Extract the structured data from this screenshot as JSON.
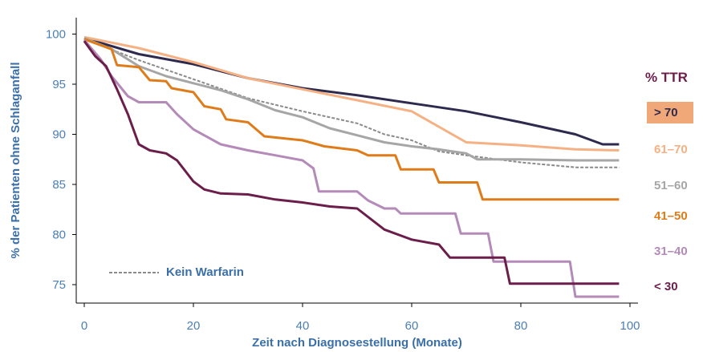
{
  "chart_data": {
    "type": "line",
    "xlabel": "Zeit nach Diagnosestellung (Monate)",
    "ylabel": "% der Patienten ohne Schlaganfall",
    "xlim": [
      0,
      100
    ],
    "ylim": [
      73,
      101
    ],
    "x_ticks": [
      0,
      20,
      40,
      60,
      80,
      100
    ],
    "y_ticks": [
      75,
      80,
      85,
      90,
      95,
      100
    ],
    "legend_title": "% TTR",
    "legend_position": "right",
    "annotation": "Kein Warfarin",
    "series": [
      {
        "name": "> 70",
        "color": "#2d2a4e",
        "highlight": "#f0a878",
        "points": [
          [
            0,
            99.6
          ],
          [
            10,
            98
          ],
          [
            20,
            97
          ],
          [
            30,
            95.6
          ],
          [
            40,
            94.6
          ],
          [
            50,
            93.9
          ],
          [
            60,
            93.1
          ],
          [
            70,
            92.3
          ],
          [
            80,
            91.2
          ],
          [
            90,
            90
          ],
          [
            95,
            89
          ],
          [
            98,
            89
          ]
        ]
      },
      {
        "name": "61–70",
        "color": "#f5b183",
        "points": [
          [
            0,
            99.7
          ],
          [
            10,
            98.6
          ],
          [
            20,
            97.2
          ],
          [
            30,
            95.6
          ],
          [
            40,
            94.5
          ],
          [
            50,
            93.4
          ],
          [
            60,
            92.3
          ],
          [
            70,
            89.2
          ],
          [
            80,
            88.9
          ],
          [
            90,
            88.5
          ],
          [
            98,
            88.4
          ]
        ]
      },
      {
        "name": "51–60",
        "color": "#a6a6a6",
        "points": [
          [
            0,
            99.6
          ],
          [
            5,
            98.5
          ],
          [
            10,
            96.8
          ],
          [
            15,
            95.8
          ],
          [
            20,
            95.1
          ],
          [
            25,
            94.4
          ],
          [
            30,
            93.5
          ],
          [
            35,
            92.4
          ],
          [
            40,
            91.7
          ],
          [
            45,
            90.6
          ],
          [
            50,
            89.9
          ],
          [
            55,
            89.2
          ],
          [
            60,
            88.8
          ],
          [
            65,
            88.5
          ],
          [
            70,
            88.1
          ],
          [
            72,
            87.5
          ],
          [
            80,
            87.5
          ],
          [
            90,
            87.4
          ],
          [
            98,
            87.4
          ]
        ]
      },
      {
        "name": "41–50",
        "color": "#e07b1a",
        "points": [
          [
            0,
            99.5
          ],
          [
            5,
            98.5
          ],
          [
            6,
            96.9
          ],
          [
            10,
            96.7
          ],
          [
            12,
            95.4
          ],
          [
            15,
            95.3
          ],
          [
            16,
            94.6
          ],
          [
            20,
            94.2
          ],
          [
            22,
            92.8
          ],
          [
            25,
            92.5
          ],
          [
            26,
            91.5
          ],
          [
            30,
            91.2
          ],
          [
            33,
            89.8
          ],
          [
            40,
            89.4
          ],
          [
            44,
            88.8
          ],
          [
            50,
            88.4
          ],
          [
            52,
            87.9
          ],
          [
            57,
            87.9
          ],
          [
            58,
            86.5
          ],
          [
            64,
            86.5
          ],
          [
            65,
            85.2
          ],
          [
            72,
            85.2
          ],
          [
            73,
            83.5
          ],
          [
            98,
            83.5
          ]
        ]
      },
      {
        "name": "31–40",
        "color": "#b48ab8",
        "points": [
          [
            0,
            99.4
          ],
          [
            3,
            97.5
          ],
          [
            5,
            95.8
          ],
          [
            8,
            93.8
          ],
          [
            10,
            93.2
          ],
          [
            15,
            93.2
          ],
          [
            17,
            92
          ],
          [
            20,
            90.5
          ],
          [
            25,
            89
          ],
          [
            30,
            88.4
          ],
          [
            35,
            87.9
          ],
          [
            40,
            87.4
          ],
          [
            42,
            86.6
          ],
          [
            43,
            84.3
          ],
          [
            50,
            84.3
          ],
          [
            52,
            83.4
          ],
          [
            55,
            82.6
          ],
          [
            57,
            82.6
          ],
          [
            58,
            82.1
          ],
          [
            68,
            82.1
          ],
          [
            69,
            80.1
          ],
          [
            74,
            80.1
          ],
          [
            75,
            77.3
          ],
          [
            89,
            77.3
          ],
          [
            90,
            73.8
          ],
          [
            98,
            73.8
          ]
        ]
      },
      {
        "name": "< 30",
        "color": "#6b1e4a",
        "points": [
          [
            0,
            99.3
          ],
          [
            2,
            97.8
          ],
          [
            4,
            96.8
          ],
          [
            6,
            94.5
          ],
          [
            8,
            92
          ],
          [
            10,
            89
          ],
          [
            12,
            88.4
          ],
          [
            15,
            88.1
          ],
          [
            17,
            87.4
          ],
          [
            20,
            85.3
          ],
          [
            22,
            84.5
          ],
          [
            25,
            84.1
          ],
          [
            30,
            84
          ],
          [
            35,
            83.5
          ],
          [
            40,
            83.2
          ],
          [
            45,
            82.8
          ],
          [
            50,
            82.6
          ],
          [
            55,
            80.5
          ],
          [
            60,
            79.5
          ],
          [
            65,
            79
          ],
          [
            67,
            77.7
          ],
          [
            70,
            77.7
          ],
          [
            77,
            77.7
          ],
          [
            78,
            75.1
          ],
          [
            98,
            75.1
          ]
        ]
      },
      {
        "name": "Kein Warfarin",
        "color": "#8a8a8a",
        "dashed": true,
        "points": [
          [
            0,
            99.5
          ],
          [
            10,
            97.4
          ],
          [
            20,
            95.5
          ],
          [
            30,
            93.6
          ],
          [
            40,
            92.3
          ],
          [
            50,
            91.1
          ],
          [
            55,
            90
          ],
          [
            60,
            89.4
          ],
          [
            65,
            88.3
          ],
          [
            70,
            87.9
          ],
          [
            80,
            87.2
          ],
          [
            90,
            86.7
          ],
          [
            98,
            86.7
          ]
        ]
      }
    ]
  }
}
